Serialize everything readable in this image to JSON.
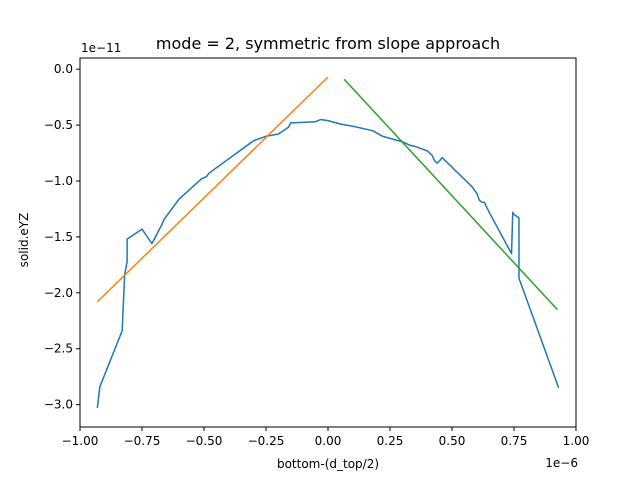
{
  "chart_data": {
    "type": "line",
    "title": "mode = 2, symmetric from slope approach",
    "xlabel": "bottom-(d_top/2)",
    "ylabel": "solid.eYZ",
    "x_scale_label": "1e−6",
    "y_scale_label": "1e−11",
    "xlim": [
      -1.0,
      1.0
    ],
    "ylim": [
      -3.2,
      0.1
    ],
    "x_ticks": [
      -1.0,
      -0.75,
      -0.5,
      -0.25,
      0.0,
      0.25,
      0.5,
      0.75,
      1.0
    ],
    "x_tick_labels": [
      "−1.00",
      "−0.75",
      "−0.50",
      "−0.25",
      "0.00",
      "0.25",
      "0.50",
      "0.75",
      "1.00"
    ],
    "y_ticks": [
      0.0,
      -0.5,
      -1.0,
      -1.5,
      -2.0,
      -2.5,
      -3.0
    ],
    "y_tick_labels": [
      "0.0",
      "−0.5",
      "−1.0",
      "−1.5",
      "−2.0",
      "−2.5",
      "−3.0"
    ],
    "grid": false,
    "series": [
      {
        "color": "#1f77b4",
        "x": [
          -0.93,
          -0.92,
          -0.83,
          -0.82,
          -0.81,
          -0.81,
          -0.79,
          -0.75,
          -0.71,
          -0.67,
          -0.66,
          -0.61,
          -0.6,
          -0.51,
          -0.49,
          -0.48,
          -0.3,
          -0.25,
          -0.2,
          -0.16,
          -0.15,
          -0.05,
          -0.03,
          0.0,
          0.05,
          0.1,
          0.18,
          0.22,
          0.3,
          0.32,
          0.33,
          0.35,
          0.4,
          0.42,
          0.43,
          0.44,
          0.45,
          0.46,
          0.58,
          0.6,
          0.61,
          0.62,
          0.63,
          0.65,
          0.74,
          0.745,
          0.75,
          0.77,
          0.77,
          0.775,
          0.78,
          0.93
        ],
        "y": [
          -3.03,
          -2.84,
          -2.34,
          -1.84,
          -1.72,
          -1.52,
          -1.49,
          -1.43,
          -1.56,
          -1.39,
          -1.34,
          -1.19,
          -1.16,
          -0.98,
          -0.96,
          -0.93,
          -0.64,
          -0.6,
          -0.58,
          -0.52,
          -0.48,
          -0.47,
          -0.45,
          -0.46,
          -0.49,
          -0.51,
          -0.55,
          -0.6,
          -0.65,
          -0.67,
          -0.68,
          -0.69,
          -0.73,
          -0.77,
          -0.82,
          -0.84,
          -0.82,
          -0.79,
          -1.05,
          -1.11,
          -1.17,
          -1.19,
          -1.19,
          -1.28,
          -1.65,
          -1.28,
          -1.3,
          -1.33,
          -1.87,
          -1.9,
          -1.93,
          -2.85
        ]
      },
      {
        "color": "#ff7f0e",
        "x": [
          -0.93,
          0.0
        ],
        "y": [
          -2.08,
          -0.07
        ]
      },
      {
        "color": "#2ca02c",
        "x": [
          0.065,
          0.925
        ],
        "y": [
          -0.09,
          -2.15
        ]
      }
    ]
  }
}
